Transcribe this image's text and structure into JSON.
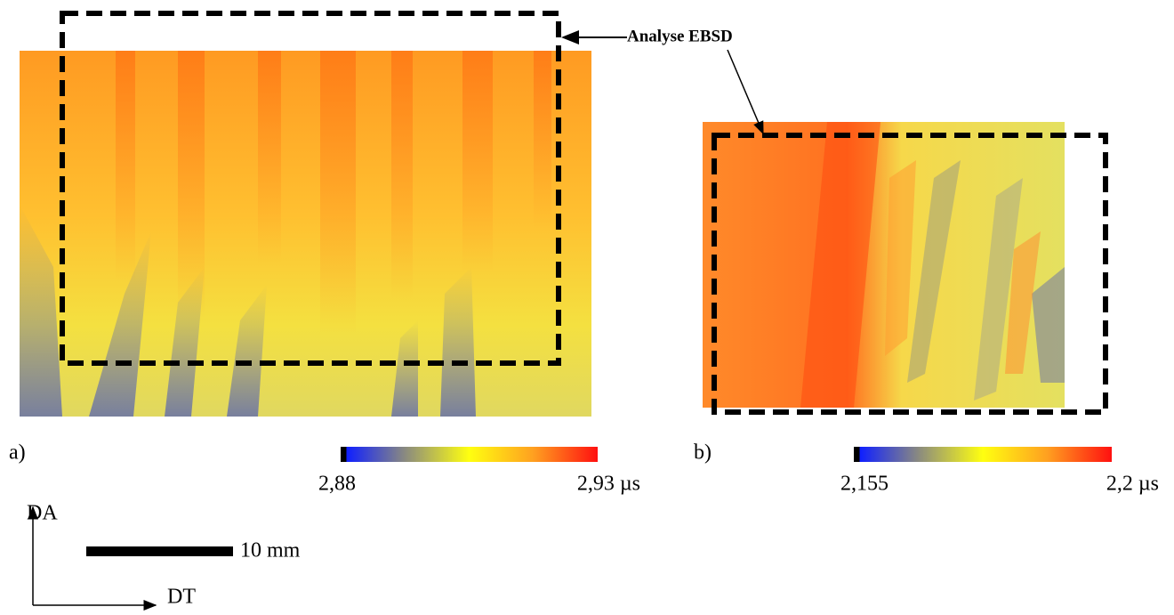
{
  "annotation": "Analyse EBSD",
  "panels": [
    {
      "label": "a)",
      "colorbar": {
        "min_label": "2,88",
        "max_label": "2,93 µs"
      }
    },
    {
      "label": "b)",
      "colorbar": {
        "min_label": "2,155",
        "max_label": "2,2 µs"
      }
    }
  ],
  "orientation": {
    "vertical": "DA",
    "horizontal": "DT"
  },
  "scale_bar": "10 mm"
}
